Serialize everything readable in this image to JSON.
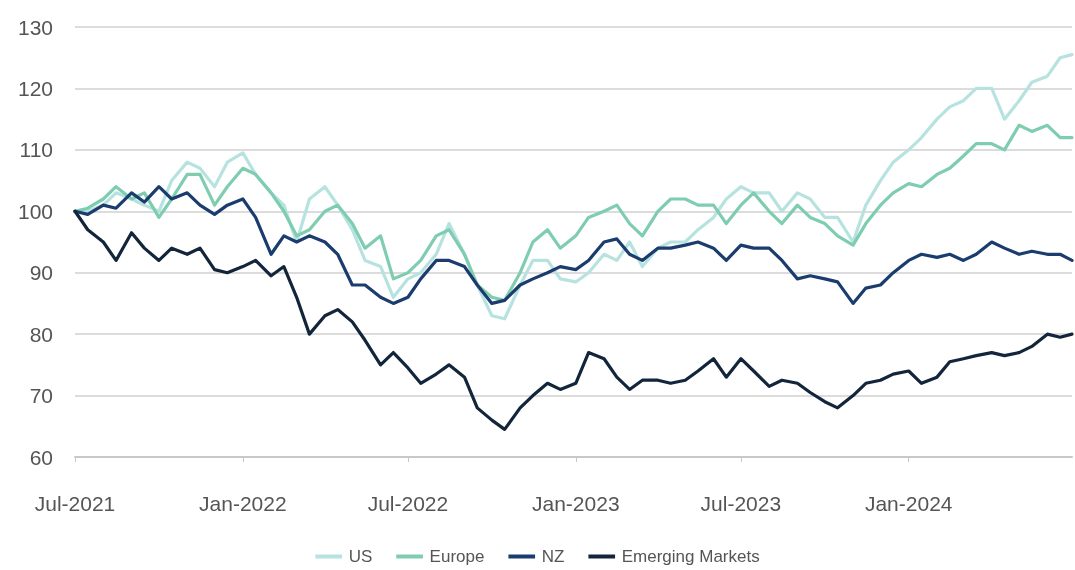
{
  "chart_data": {
    "type": "line",
    "x": [
      "2021-07-01",
      "2021-07-15",
      "2021-08-01",
      "2021-08-15",
      "2021-09-01",
      "2021-09-15",
      "2021-10-01",
      "2021-10-15",
      "2021-11-01",
      "2021-11-15",
      "2021-12-01",
      "2021-12-15",
      "2022-01-01",
      "2022-01-15",
      "2022-02-01",
      "2022-02-15",
      "2022-03-01",
      "2022-03-15",
      "2022-04-01",
      "2022-04-15",
      "2022-05-01",
      "2022-05-15",
      "2022-06-01",
      "2022-06-15",
      "2022-07-01",
      "2022-07-15",
      "2022-08-01",
      "2022-08-15",
      "2022-09-01",
      "2022-09-15",
      "2022-10-01",
      "2022-10-15",
      "2022-11-01",
      "2022-11-15",
      "2022-12-01",
      "2022-12-15",
      "2023-01-01",
      "2023-01-15",
      "2023-02-01",
      "2023-02-15",
      "2023-03-01",
      "2023-03-15",
      "2023-04-01",
      "2023-04-15",
      "2023-05-01",
      "2023-05-15",
      "2023-06-01",
      "2023-06-15",
      "2023-07-01",
      "2023-07-15",
      "2023-08-01",
      "2023-08-15",
      "2023-09-01",
      "2023-09-15",
      "2023-10-01",
      "2023-10-15",
      "2023-11-01",
      "2023-11-15",
      "2023-12-01",
      "2023-12-15",
      "2024-01-01",
      "2024-01-15",
      "2024-02-01",
      "2024-02-15",
      "2024-03-01",
      "2024-03-15",
      "2024-04-01",
      "2024-04-15",
      "2024-05-01",
      "2024-05-15",
      "2024-06-01",
      "2024-06-15",
      "2024-06-28"
    ],
    "series": [
      {
        "name": "US",
        "color": "#b6e3e0",
        "values": [
          100,
          100,
          101,
          103,
          102,
          101,
          100,
          105,
          108,
          107,
          104,
          108,
          109.5,
          106,
          103,
          101,
          95,
          102,
          104,
          101,
          97,
          92,
          91,
          86,
          89,
          90,
          93,
          98,
          93,
          88,
          83,
          82.5,
          88,
          92,
          92,
          89,
          88.5,
          90,
          93,
          92,
          95,
          91,
          94,
          95,
          95,
          97,
          99,
          102,
          104,
          103,
          103,
          100,
          103,
          102,
          99,
          99,
          95,
          101,
          105,
          108,
          110,
          112,
          115,
          117,
          118,
          120,
          120,
          115,
          118,
          121,
          122,
          125,
          125.5
        ]
      },
      {
        "name": "Europe",
        "color": "#7fcdb0",
        "values": [
          100,
          100.5,
          102,
          104,
          102,
          103,
          99,
          102,
          106,
          106,
          101,
          104,
          107,
          106,
          103,
          100,
          96,
          97,
          100,
          101,
          98,
          94,
          96,
          89,
          90,
          92,
          96,
          97,
          93,
          88,
          86,
          85.5,
          90,
          95,
          97,
          94,
          96,
          99,
          100,
          101,
          98,
          96,
          100,
          102,
          102,
          101,
          101,
          98,
          101,
          103,
          100,
          98,
          101,
          99,
          98,
          96,
          94.5,
          98,
          101,
          103,
          104.5,
          104,
          106,
          107,
          109,
          111,
          111,
          110,
          114,
          113,
          114,
          112,
          112
        ]
      },
      {
        "name": "NZ",
        "color": "#1b3c6e",
        "values": [
          100,
          99.5,
          101,
          100.5,
          103,
          101.5,
          104,
          102,
          103,
          101,
          99.5,
          101,
          102,
          99,
          93,
          96,
          95,
          96,
          95,
          93,
          88,
          88,
          86,
          85,
          86,
          89,
          92,
          92,
          91,
          88,
          85,
          85.5,
          88,
          89,
          90,
          91,
          90.5,
          92,
          95,
          95.5,
          93,
          92,
          94,
          94,
          94.5,
          95,
          94,
          92,
          94.5,
          94,
          94,
          92,
          89,
          89.5,
          89,
          88.5,
          85,
          87.5,
          88,
          90,
          92,
          93,
          92.5,
          93,
          92,
          93,
          95,
          94,
          93,
          93.5,
          93,
          93,
          92
        ]
      },
      {
        "name": "Emerging Markets",
        "color": "#13253a",
        "values": [
          100,
          97,
          95,
          92,
          96.5,
          94,
          92,
          94,
          93,
          94,
          90.5,
          90,
          91,
          92,
          89.5,
          91,
          86,
          80,
          83,
          84,
          82,
          79,
          75,
          77,
          74.5,
          72,
          73.5,
          75,
          73,
          68,
          66,
          64.5,
          68,
          70,
          72,
          71,
          72,
          77,
          76,
          73,
          71,
          72.5,
          72.5,
          72,
          72.5,
          74,
          76,
          73,
          76,
          74,
          71.5,
          72.5,
          72,
          70.5,
          69,
          68,
          70,
          72,
          72.5,
          73.5,
          74,
          72,
          73,
          75.5,
          76,
          76.5,
          77,
          76.5,
          77,
          78,
          80,
          79.5,
          80
        ]
      }
    ],
    "xlim": [
      "2021-07-01",
      "2024-06-28"
    ],
    "xticks": [
      {
        "value": "2021-07-01",
        "label": "Jul-2021"
      },
      {
        "value": "2022-01-01",
        "label": "Jan-2022"
      },
      {
        "value": "2022-07-01",
        "label": "Jul-2022"
      },
      {
        "value": "2023-01-01",
        "label": "Jan-2023"
      },
      {
        "value": "2023-07-01",
        "label": "Jul-2023"
      },
      {
        "value": "2024-01-01",
        "label": "Jan-2024"
      }
    ],
    "ylim": [
      60,
      130
    ],
    "yticks": [
      60,
      70,
      80,
      90,
      100,
      110,
      120,
      130
    ],
    "grid": "y",
    "legend": "bottom",
    "marker": "none",
    "line_style": "solid"
  }
}
